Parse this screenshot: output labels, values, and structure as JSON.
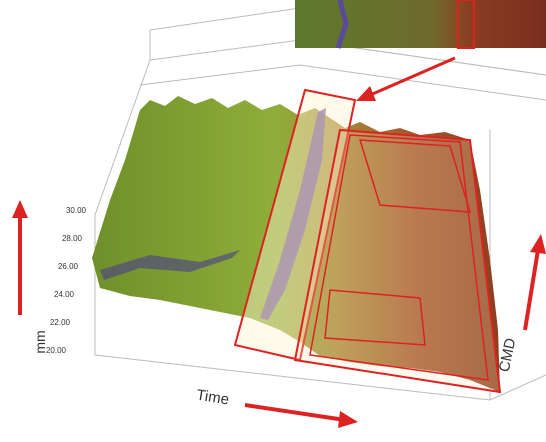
{
  "figure": {
    "axes": {
      "vertical": {
        "label": "mm",
        "ticks": [
          "30.00",
          "28.00",
          "26.00",
          "24.00",
          "22.00",
          "20.00"
        ]
      },
      "time": {
        "label": "Time"
      },
      "cmd": {
        "label": "CMD"
      }
    }
  }
}
